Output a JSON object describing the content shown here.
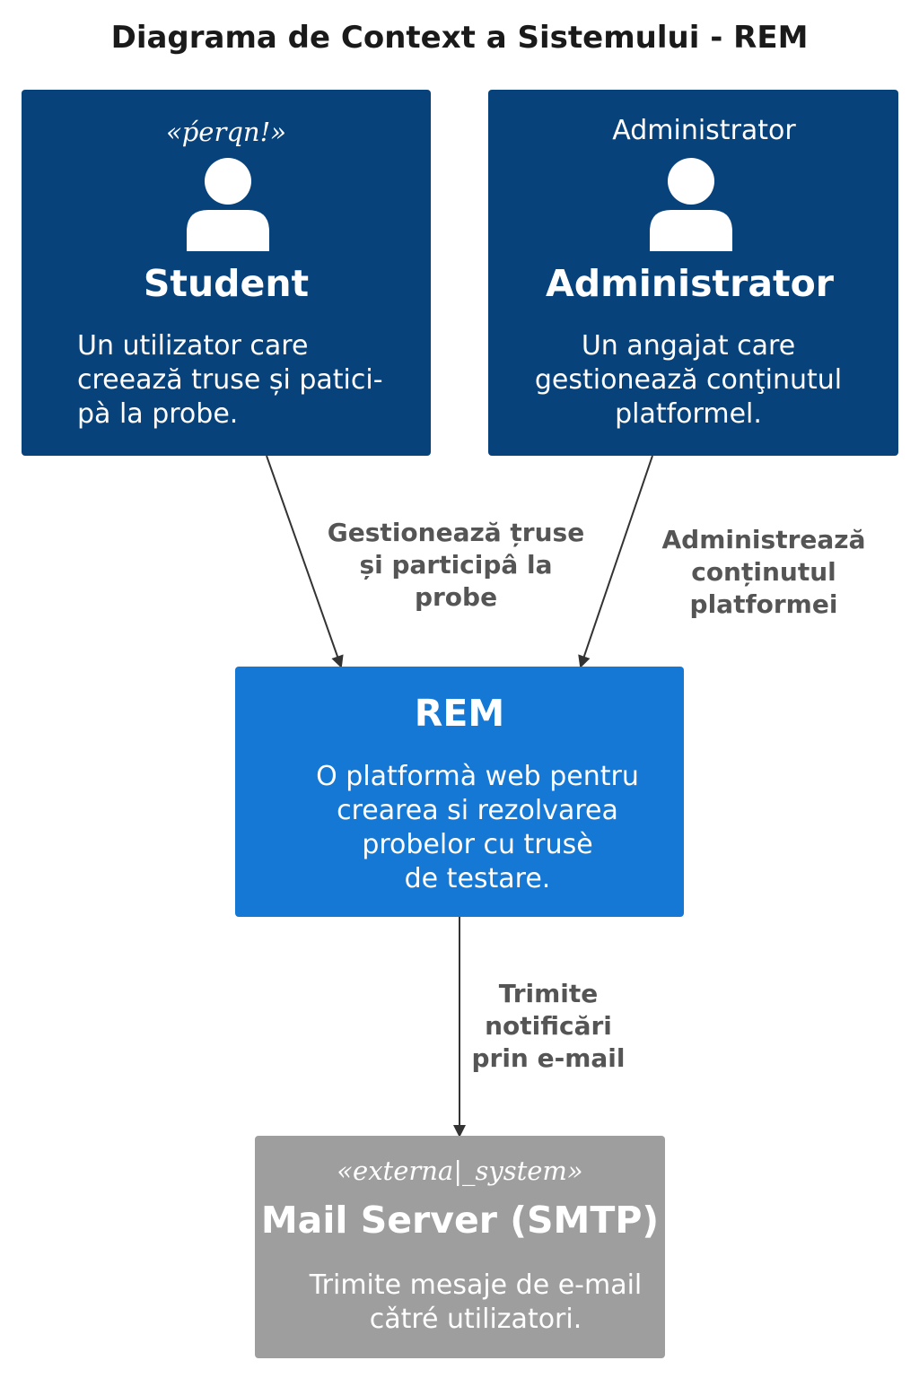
{
  "title": "Diagrama de Context a Sistemului - REM",
  "colors": {
    "person": "#08427b",
    "system": "#1478d4",
    "external": "#9e9e9e",
    "edge": "#333333",
    "edge_label": "#555555"
  },
  "nodes": {
    "student": {
      "stereotype": "«ṕerqn!»",
      "icon": "person-icon",
      "name": "Student",
      "description": [
        "Un utilizator care",
        "creează truse și patici-",
        "pà la probe."
      ]
    },
    "administrator": {
      "stereotype": "Administrator",
      "icon": "person-icon",
      "name": "Administrator",
      "description": [
        "Un angajat care",
        "gestionează conţinutul",
        "platformel."
      ]
    },
    "rem": {
      "name": "REM",
      "description": [
        "O platformà web pentru",
        "crearea si rezolvarea",
        "probelor cu trusè",
        "de testare."
      ]
    },
    "mail": {
      "stereotype": "«externa|_system»",
      "name": "Mail Server (SMTP)",
      "description": [
        "Trimite mesaje de e-mail",
        "cǎtré utilizatori."
      ]
    }
  },
  "edges": {
    "student_rem": [
      "Gestionează țruse",
      "și participâ la",
      "probe"
    ],
    "admin_rem": [
      "Administrează",
      "conținutul",
      "platformei"
    ],
    "rem_mail": [
      "Trimite",
      "notificări",
      "prin e-mail"
    ]
  }
}
